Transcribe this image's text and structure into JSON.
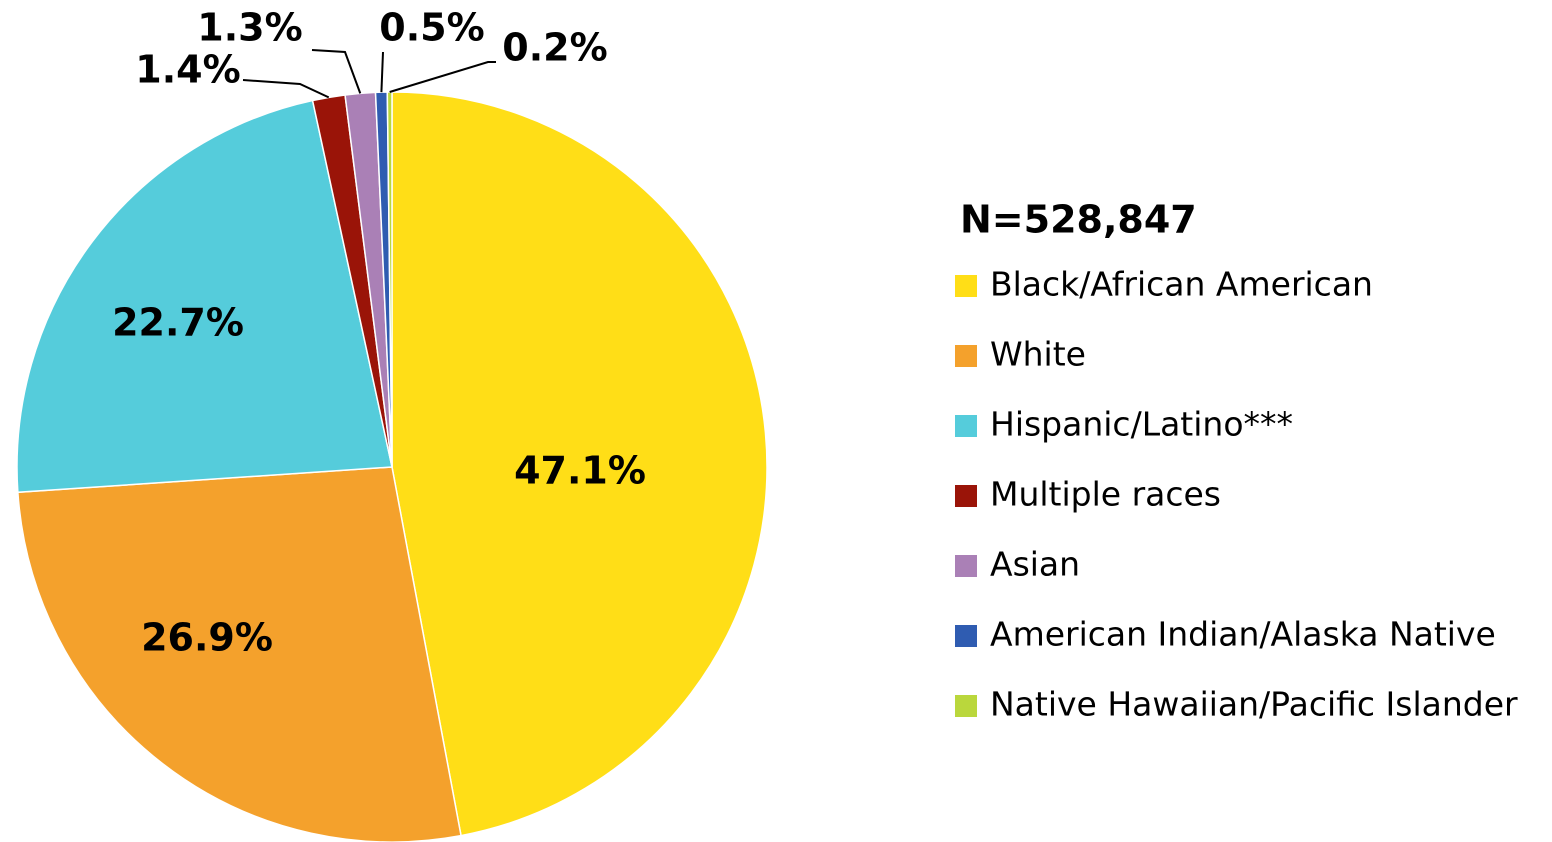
{
  "chart_data": {
    "type": "pie",
    "legend_title": "N=528,847",
    "categories": [
      "Black/African American",
      "White",
      "Hispanic/Latino***",
      "Multiple races",
      "Asian",
      "American Indian/Alaska Native",
      "Native Hawaiian/Pacific Islander"
    ],
    "values": [
      47.1,
      26.9,
      22.7,
      1.4,
      1.3,
      0.5,
      0.2
    ],
    "value_labels": [
      "47.1%",
      "26.9%",
      "22.7%",
      "1.4%",
      "1.3%",
      "0.5%",
      "0.2%"
    ],
    "colors": [
      "#FFDE17",
      "#F4A12C",
      "#55CCDB",
      "#9A1408",
      "#AA80B6",
      "#2F5CB1",
      "#BAD73C"
    ],
    "legend": "right"
  }
}
